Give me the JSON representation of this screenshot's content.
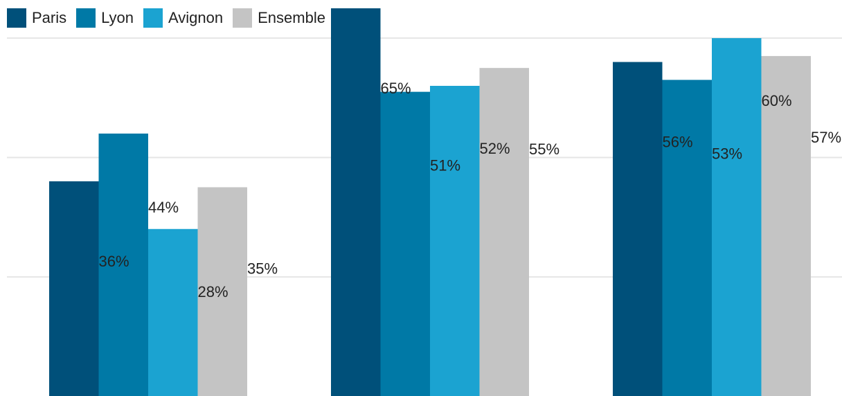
{
  "legend": {
    "items": [
      {
        "label": "Paris",
        "color": "#00507a"
      },
      {
        "label": "Lyon",
        "color": "#0079a6"
      },
      {
        "label": "Avignon",
        "color": "#1ba3d1"
      },
      {
        "label": "Ensemble",
        "color": "#c4c4c4"
      }
    ]
  },
  "chart_data": {
    "type": "bar",
    "title": "",
    "xlabel": "",
    "ylabel": "",
    "categories": [
      "",
      "",
      ""
    ],
    "ylim": [
      0,
      65
    ],
    "grid": true,
    "legend_position": "top-left",
    "series": [
      {
        "name": "Paris",
        "color": "#00507a",
        "values": [
          36,
          65,
          56
        ]
      },
      {
        "name": "Lyon",
        "color": "#0079a6",
        "values": [
          44,
          51,
          53
        ]
      },
      {
        "name": "Avignon",
        "color": "#1ba3d1",
        "values": [
          28,
          52,
          60
        ]
      },
      {
        "name": "Ensemble",
        "color": "#c4c4c4",
        "values": [
          35,
          55,
          57
        ]
      }
    ],
    "value_suffix": "%"
  }
}
